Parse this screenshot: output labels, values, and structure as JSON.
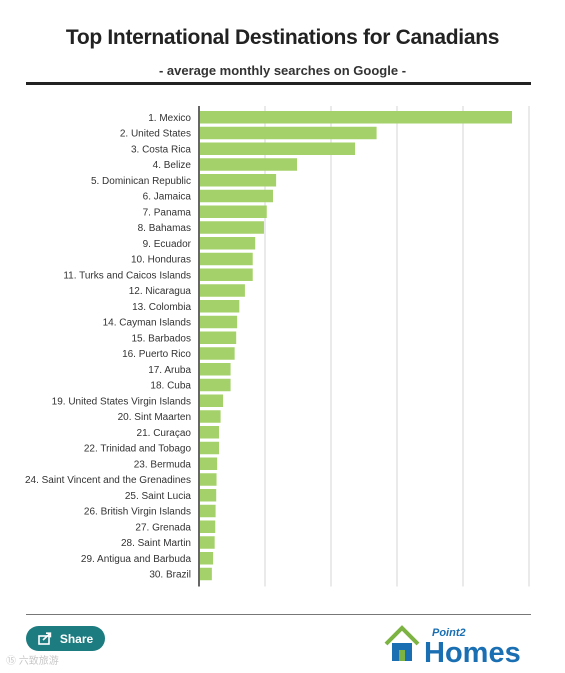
{
  "header": {
    "title": "Top International Destinations for Canadians",
    "subtitle": "- average monthly searches on Google -"
  },
  "share": {
    "label": "Share"
  },
  "logo": {
    "small_text": "Point2",
    "big_text": "Homes"
  },
  "watermark": "⑮ 六致旅游",
  "colors": {
    "bar": "#a5d16a",
    "rule": "#222222",
    "share_bg": "#1d7c80",
    "logo_blue": "#1a6fb3",
    "logo_green": "#7cb342"
  },
  "chart_data": {
    "type": "bar",
    "orientation": "horizontal",
    "title": "Top International Destinations for Canadians",
    "subtitle": "- average monthly searches on Google -",
    "xlabel": "",
    "ylabel": "",
    "grid": true,
    "categories": [
      "1. Mexico",
      "2. United States",
      "3. Costa Rica",
      "4. Belize",
      "5. Dominican Republic",
      "6. Jamaica",
      "7. Panama",
      "8. Bahamas",
      "9. Ecuador",
      "10. Honduras",
      "11. Turks and Caicos Islands",
      "12. Nicaragua",
      "13. Colombia",
      "14. Cayman Islands",
      "15. Barbados",
      "16. Puerto Rico",
      "17. Aruba",
      "18. Cuba",
      "19. United States Virgin Islands",
      "20. Sint Maarten",
      "21. Curaçao",
      "22. Trinidad and Tobago",
      "23. Bermuda",
      "24. Saint Vincent and the Grenadines",
      "25. Saint Lucia",
      "26. British Virgin Islands",
      "27. Grenada",
      "28. Saint Martin",
      "29. Antigua and Barbuda",
      "30. Brazil"
    ],
    "values": [
      100,
      56.6,
      49.7,
      31.1,
      24.4,
      23.4,
      21.4,
      20.5,
      17.7,
      16.9,
      16.9,
      14.4,
      12.6,
      11.9,
      11.6,
      11.1,
      9.8,
      9.8,
      7.4,
      6.6,
      6.1,
      6.1,
      5.5,
      5.3,
      5.2,
      5.0,
      4.9,
      4.7,
      4.2,
      3.8
    ],
    "xlim": [
      0,
      100
    ]
  }
}
